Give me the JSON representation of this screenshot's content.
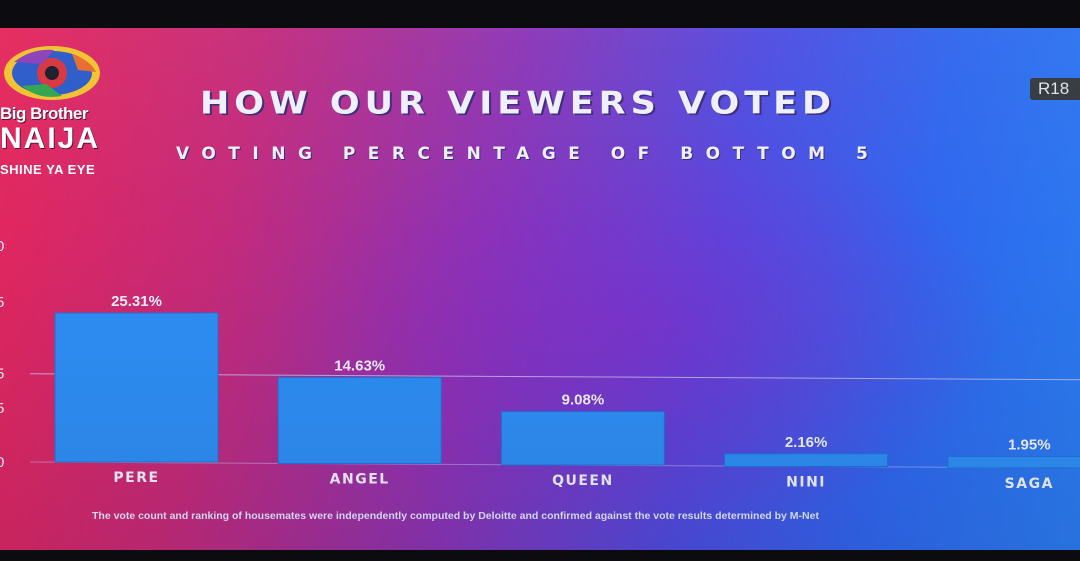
{
  "logo": {
    "line1": "Big Brother",
    "line2": "NAIJA",
    "line3": "SHINE YA EYE"
  },
  "rating": "R18",
  "footnote": "The vote count and ranking of housemates were independently computed by Deloitte and confirmed against the vote results determined by M-Net",
  "colors": {
    "bar": "#2e8ef5",
    "bar_edge": "#1f74d8",
    "text": "#eef0ff",
    "gridline": "#c9c3f0"
  },
  "chart_data": {
    "type": "bar",
    "title": "HOW OUR VIEWERS VOTED",
    "subtitle": "VOTING PERCENTAGE OF BOTTOM 5",
    "categories": [
      "PERE",
      "ANGEL",
      "QUEEN",
      "NINI",
      "SAGA"
    ],
    "values": [
      25.31,
      14.63,
      9.08,
      2.16,
      1.95
    ],
    "data_labels": [
      "25.31%",
      "14.63%",
      "9.08%",
      "2.16%",
      "1.95%"
    ],
    "yticks": [
      "0",
      "5",
      "5",
      "5",
      "0"
    ],
    "ylim": [
      0,
      35
    ],
    "grid": true
  }
}
